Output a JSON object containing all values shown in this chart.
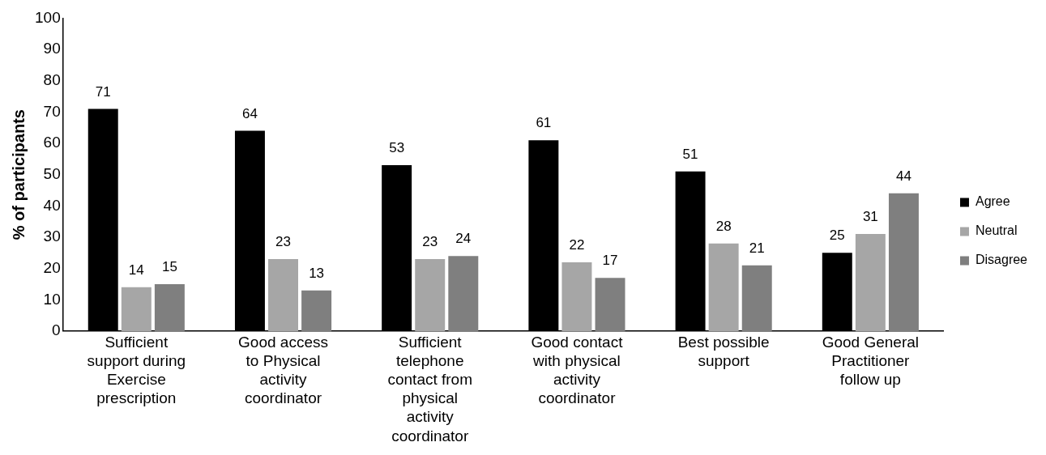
{
  "chart_data": {
    "type": "bar",
    "ylabel": "% of participants",
    "categories": [
      "Sufficient support during Exercise prescription",
      "Good access to Physical activity coordinator",
      "Sufficient telephone contact from physical activity coordinator",
      "Good contact with physical activity coordinator",
      "Best possible support",
      "Good General Practitioner follow up"
    ],
    "series": [
      {
        "name": "Agree",
        "color": "#000000",
        "values": [
          71,
          64,
          53,
          61,
          51,
          25
        ]
      },
      {
        "name": "Neutral",
        "color": "#a6a6a6",
        "values": [
          14,
          23,
          23,
          22,
          28,
          31
        ]
      },
      {
        "name": "Disagree",
        "color": "#7f7f7f",
        "values": [
          15,
          13,
          24,
          17,
          21,
          44
        ]
      }
    ],
    "ylim": [
      0,
      100
    ],
    "yticks": [
      0,
      10,
      20,
      30,
      40,
      50,
      60,
      70,
      80,
      90,
      100
    ],
    "grid": false,
    "legend": "right",
    "data_labels": true
  }
}
